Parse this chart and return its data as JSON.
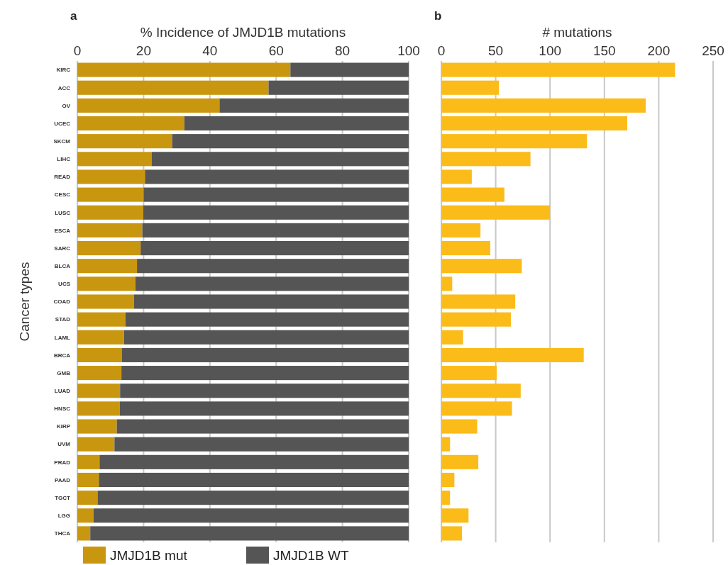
{
  "chart_data": [
    {
      "type": "bar",
      "orientation": "horizontal",
      "stacked": true,
      "annotations": [
        "a"
      ],
      "xlabel": "% Incidence of JMJD1B mutations",
      "ylabel": "Cancer types",
      "categories": [
        "KIRC",
        "ACC",
        "OV",
        "UCEC",
        "SKCM",
        "LIHC",
        "READ",
        "CESC",
        "LUSC",
        "ESCA",
        "SARC",
        "BLCA",
        "UCS",
        "COAD",
        "STAD",
        "LAML",
        "BRCA",
        "GMB",
        "LUAD",
        "HNSC",
        "KIRP",
        "UVM",
        "PRAD",
        "PAAD",
        "TGCT",
        "LGG",
        "THCA"
      ],
      "series": [
        {
          "name": "JMJD1B mut",
          "color": "#c9970f",
          "values": [
            64.3,
            57.7,
            42.9,
            32.3,
            28.6,
            22.4,
            20.4,
            20.0,
            19.9,
            19.6,
            19.1,
            18.0,
            17.5,
            17.1,
            14.5,
            14.1,
            13.4,
            13.3,
            12.9,
            12.8,
            11.9,
            11.2,
            6.7,
            6.5,
            6.1,
            4.9,
            3.9
          ]
        },
        {
          "name": "JMJD1B WT",
          "color": "#555555",
          "values": [
            35.7,
            42.3,
            57.1,
            67.7,
            71.4,
            77.6,
            79.6,
            80.0,
            80.1,
            80.4,
            80.9,
            82.0,
            82.5,
            82.9,
            85.5,
            85.9,
            86.6,
            86.7,
            87.1,
            87.2,
            88.1,
            88.8,
            93.3,
            93.5,
            93.9,
            95.1,
            96.1
          ]
        }
      ],
      "xlim": [
        0,
        100
      ],
      "xticks": [
        0,
        20,
        40,
        60,
        80,
        100
      ],
      "grid": "x",
      "legend": "bottom"
    },
    {
      "type": "bar",
      "orientation": "horizontal",
      "annotations": [
        "b"
      ],
      "xlabel": "# mutations",
      "categories": [
        null,
        null,
        null,
        null,
        null,
        null,
        null,
        null,
        null,
        null,
        null,
        null,
        null,
        null,
        null,
        null,
        null,
        null,
        null,
        null,
        null,
        null,
        null,
        null,
        null,
        null,
        null
      ],
      "series": [
        {
          "color": "#fbbc1a",
          "values": [
            215,
            53,
            188,
            171,
            134,
            82,
            28,
            58,
            100,
            36,
            45,
            74,
            10,
            68,
            64,
            20,
            131,
            51,
            73,
            65,
            33,
            8,
            34,
            12,
            8,
            25,
            19
          ]
        }
      ],
      "xlim": [
        0,
        250
      ],
      "xticks": [
        0,
        50,
        100,
        150,
        200,
        250
      ],
      "grid": "x"
    }
  ]
}
